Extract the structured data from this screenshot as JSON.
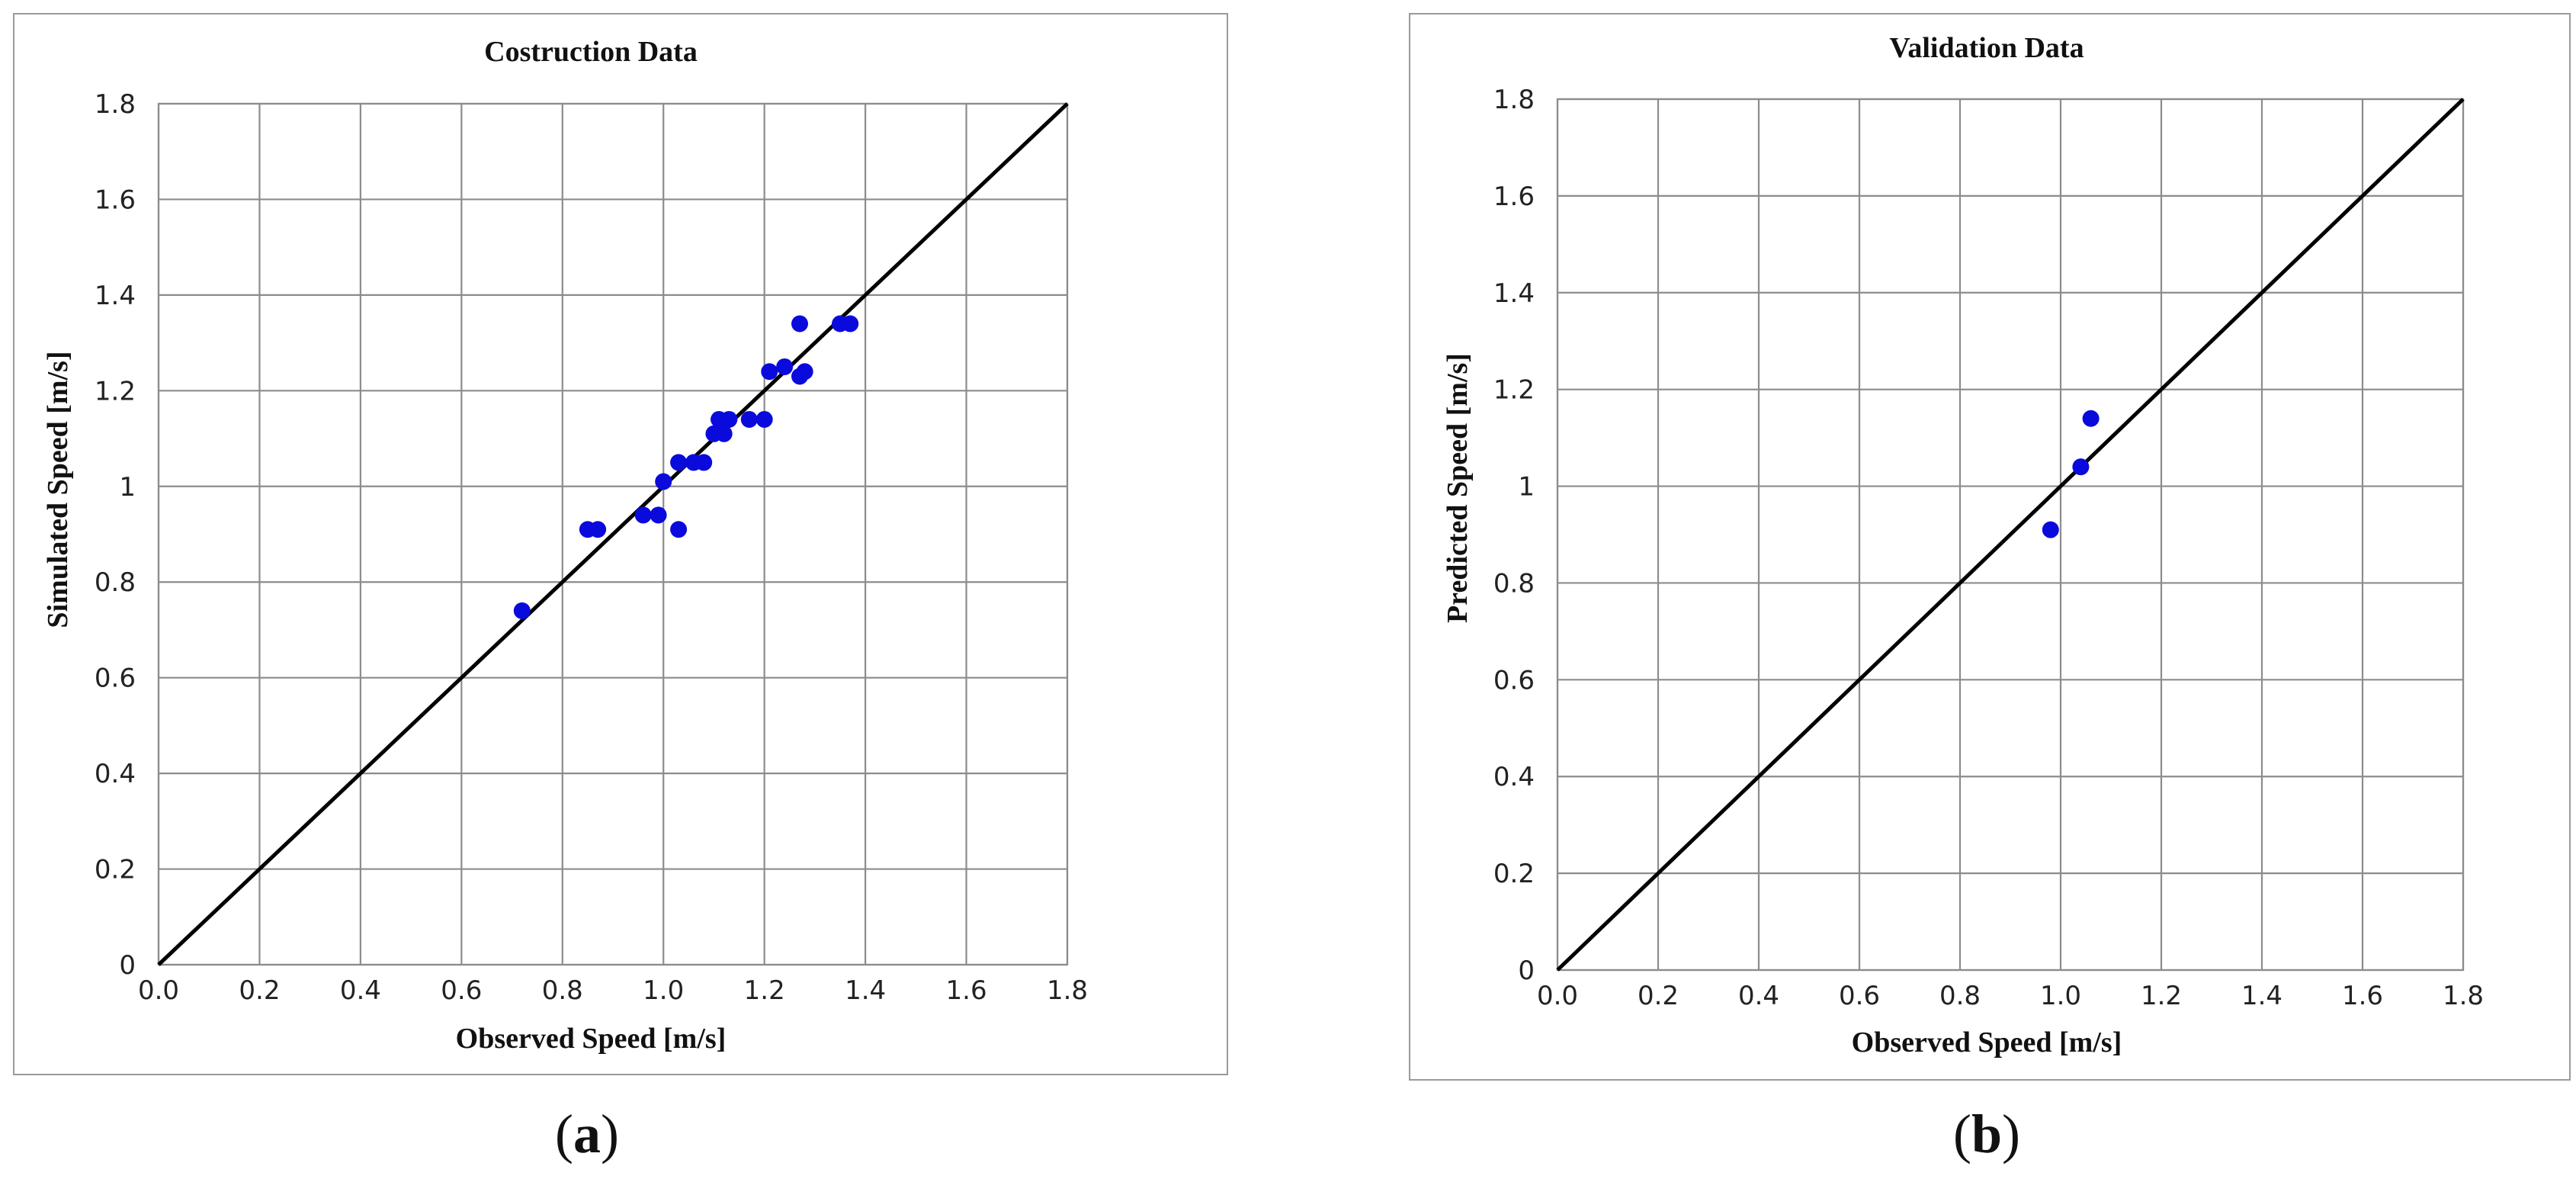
{
  "chart_data": [
    {
      "type": "scatter",
      "title": "Costruction Data",
      "xlabel": "Observed Speed [m/s]",
      "ylabel": "Simulated Speed [m/s]",
      "xlim": [
        0,
        1.8
      ],
      "ylim": [
        0,
        1.8
      ],
      "xticks": [
        "0.0",
        "0.2",
        "0.4",
        "0.6",
        "0.8",
        "1.0",
        "1.2",
        "1.4",
        "1.6",
        "1.8"
      ],
      "yticks": [
        "0",
        "0.2",
        "0.4",
        "0.6",
        "0.8",
        "1",
        "1.2",
        "1.4",
        "1.6",
        "1.8"
      ],
      "grid": true,
      "reference_line": "y = x",
      "marker_color": "#0a0adc",
      "points": [
        {
          "x": 0.72,
          "y": 0.74
        },
        {
          "x": 0.85,
          "y": 0.91
        },
        {
          "x": 0.87,
          "y": 0.91
        },
        {
          "x": 0.96,
          "y": 0.94
        },
        {
          "x": 0.99,
          "y": 0.94
        },
        {
          "x": 1.0,
          "y": 1.01
        },
        {
          "x": 1.03,
          "y": 0.91
        },
        {
          "x": 1.03,
          "y": 1.05
        },
        {
          "x": 1.06,
          "y": 1.05
        },
        {
          "x": 1.08,
          "y": 1.05
        },
        {
          "x": 1.1,
          "y": 1.11
        },
        {
          "x": 1.11,
          "y": 1.14
        },
        {
          "x": 1.12,
          "y": 1.11
        },
        {
          "x": 1.13,
          "y": 1.14
        },
        {
          "x": 1.17,
          "y": 1.14
        },
        {
          "x": 1.2,
          "y": 1.14
        },
        {
          "x": 1.21,
          "y": 1.24
        },
        {
          "x": 1.24,
          "y": 1.25
        },
        {
          "x": 1.27,
          "y": 1.23
        },
        {
          "x": 1.28,
          "y": 1.24
        },
        {
          "x": 1.27,
          "y": 1.34
        },
        {
          "x": 1.35,
          "y": 1.34
        },
        {
          "x": 1.37,
          "y": 1.34
        }
      ]
    },
    {
      "type": "scatter",
      "title": "Validation Data",
      "xlabel": "Observed Speed [m/s]",
      "ylabel": "Predicted Speed [m/s]",
      "xlim": [
        0,
        1.8
      ],
      "ylim": [
        0,
        1.8
      ],
      "xticks": [
        "0.0",
        "0.2",
        "0.4",
        "0.6",
        "0.8",
        "1.0",
        "1.2",
        "1.4",
        "1.6",
        "1.8"
      ],
      "yticks": [
        "0",
        "0.2",
        "0.4",
        "0.6",
        "0.8",
        "1",
        "1.2",
        "1.4",
        "1.6",
        "1.8"
      ],
      "grid": true,
      "reference_line": "y = x",
      "marker_color": "#0a0adc",
      "points": [
        {
          "x": 0.98,
          "y": 0.91
        },
        {
          "x": 1.04,
          "y": 1.04
        },
        {
          "x": 1.06,
          "y": 1.14
        }
      ]
    }
  ],
  "captions": [
    {
      "open": "(",
      "letter": "a",
      "close": ")"
    },
    {
      "open": "(",
      "letter": "b",
      "close": ")"
    }
  ]
}
